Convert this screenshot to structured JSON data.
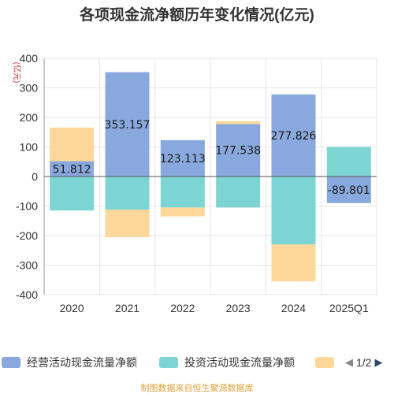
{
  "chart_data": {
    "type": "bar",
    "stacked": true,
    "title": "各项现金流净额历年变化情况(亿元)",
    "ylabel": "(亿元)",
    "categories": [
      "2020",
      "2021",
      "2022",
      "2023",
      "2024",
      "2025Q1"
    ],
    "ylim": [
      -400,
      400
    ],
    "yticks": [
      400,
      300,
      200,
      100,
      0,
      -100,
      -200,
      -300,
      -400
    ],
    "grid": true,
    "legend_position": "bottom",
    "series": [
      {
        "name": "经营活动现金流量净额",
        "color": "#89a8dd",
        "values": [
          51.812,
          353.157,
          123.113,
          177.538,
          277.826,
          -89.801
        ],
        "labels": [
          "51.812",
          "353.157",
          "123.113",
          "177.538",
          "277.826",
          "-89.801"
        ]
      },
      {
        "name": "投资活动现金流量净额",
        "color": "#7dd5d3",
        "values": [
          -115,
          -112,
          -105,
          -105,
          -230,
          100
        ]
      },
      {
        "name": "",
        "color": "#fdd89a",
        "values": [
          114,
          -93,
          -30,
          10,
          -125,
          0
        ]
      }
    ]
  },
  "legend": {
    "pager": {
      "text": "1/2",
      "prev_icon": "◀",
      "next_icon": "▶"
    }
  },
  "source": "制图数据来自恒生聚源数据库"
}
